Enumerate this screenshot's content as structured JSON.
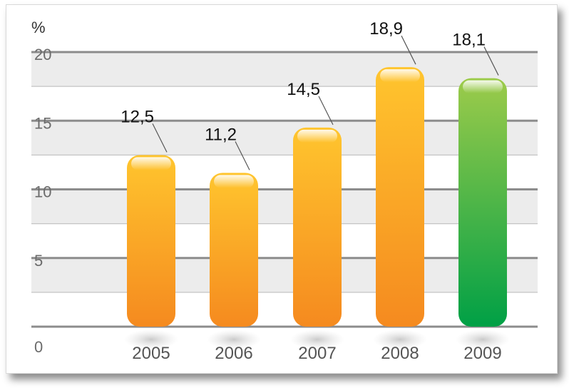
{
  "chart_data": {
    "type": "bar",
    "unit_label": "%",
    "categories": [
      "2005",
      "2006",
      "2007",
      "2008",
      "2009"
    ],
    "values": [
      12.5,
      11.2,
      14.5,
      18.9,
      18.1
    ],
    "value_labels": [
      "12,5",
      "11,2",
      "14,5",
      "18,9",
      "18,1"
    ],
    "y_ticks": [
      "0",
      "5",
      "10",
      "15",
      "20"
    ],
    "ylim": [
      0,
      20
    ],
    "grid": true,
    "colors": {
      "bar_default_top": "#FFC52E",
      "bar_default_bottom": "#F58A1F",
      "bar_highlight_top": "#9DCB4A",
      "bar_highlight_bottom": "#00A046"
    },
    "highlight_index": 4
  }
}
